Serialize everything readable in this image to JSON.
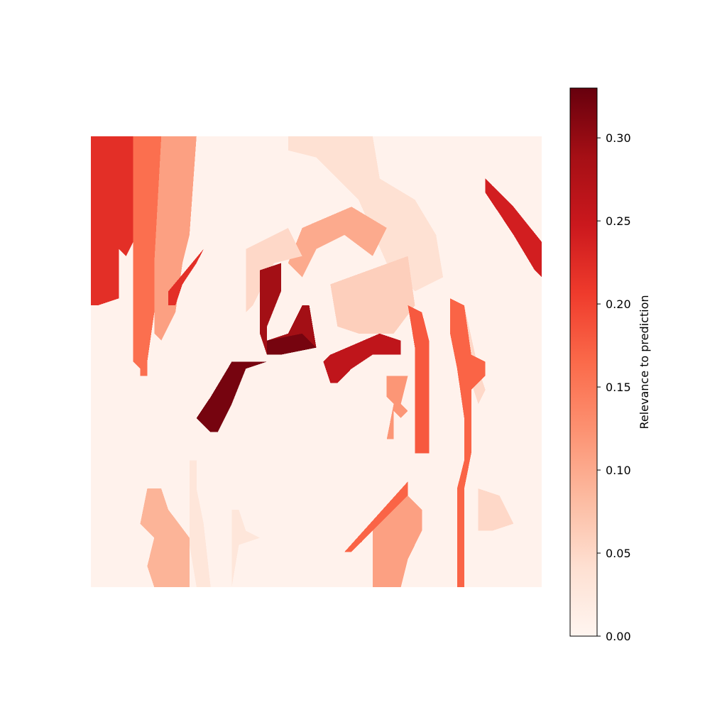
{
  "chart_data": {
    "type": "heatmap",
    "title": "",
    "xlabel": "",
    "ylabel": "",
    "axes_visible": false,
    "colormap": "Reds",
    "colormap_stops": [
      "#fff5f0",
      "#fee0d2",
      "#fcbba1",
      "#fc9272",
      "#fb6a4a",
      "#ef3b2c",
      "#cb181d",
      "#a50f15",
      "#67000d"
    ],
    "value_range": [
      0.0,
      0.33
    ],
    "colorbar": {
      "label": "Relevance to prediction",
      "ticks": [
        0.0,
        0.05,
        0.1,
        0.15,
        0.2,
        0.25,
        0.3
      ],
      "tick_labels": [
        "0.00",
        "0.05",
        "0.10",
        "0.15",
        "0.20",
        "0.25",
        "0.30"
      ]
    },
    "grid_size": [
      64,
      64
    ],
    "background_value": 0.005,
    "regions": [
      {
        "value": 0.22,
        "poly": [
          [
            0,
            0
          ],
          [
            6,
            0
          ],
          [
            6,
            15
          ],
          [
            5,
            17
          ],
          [
            4,
            16
          ],
          [
            4,
            23
          ],
          [
            1,
            24
          ],
          [
            0,
            24
          ]
        ]
      },
      {
        "value": 0.16,
        "poly": [
          [
            6,
            0
          ],
          [
            10,
            0
          ],
          [
            9,
            18
          ],
          [
            9,
            25
          ],
          [
            8,
            32
          ],
          [
            8,
            34
          ],
          [
            7,
            34
          ],
          [
            7,
            33
          ],
          [
            6,
            32
          ],
          [
            6,
            27
          ],
          [
            6,
            16
          ]
        ]
      },
      {
        "value": 0.11,
        "poly": [
          [
            10,
            0
          ],
          [
            15,
            0
          ],
          [
            14,
            14
          ],
          [
            13,
            18
          ],
          [
            12,
            25
          ],
          [
            10,
            29
          ],
          [
            9,
            28
          ],
          [
            9,
            18
          ]
        ]
      },
      {
        "value": 0.22,
        "poly": [
          [
            11,
            22
          ],
          [
            16,
            16
          ],
          [
            15,
            18
          ],
          [
            13,
            21
          ],
          [
            12,
            24
          ],
          [
            11,
            24
          ]
        ]
      },
      {
        "value": 0.04,
        "poly": [
          [
            28,
            0
          ],
          [
            40,
            0
          ],
          [
            41,
            6
          ],
          [
            46,
            9
          ],
          [
            49,
            14
          ],
          [
            50,
            20
          ],
          [
            46,
            22
          ],
          [
            42,
            18
          ],
          [
            38,
            9
          ],
          [
            32,
            3
          ],
          [
            28,
            2
          ]
        ]
      },
      {
        "value": 0.1,
        "poly": [
          [
            30,
            13
          ],
          [
            37,
            10
          ],
          [
            42,
            13
          ],
          [
            40,
            17
          ],
          [
            36,
            14
          ],
          [
            32,
            16
          ],
          [
            30,
            20
          ],
          [
            28,
            18
          ]
        ]
      },
      {
        "value": 0.05,
        "poly": [
          [
            22,
            16
          ],
          [
            28,
            13
          ],
          [
            30,
            17
          ],
          [
            26,
            18
          ],
          [
            23,
            24
          ],
          [
            22,
            25
          ]
        ]
      },
      {
        "value": 0.29,
        "poly": [
          [
            24,
            19
          ],
          [
            27,
            18
          ],
          [
            27,
            22
          ],
          [
            25,
            27
          ],
          [
            25,
            29
          ],
          [
            28,
            28
          ],
          [
            30,
            24
          ],
          [
            31,
            24
          ],
          [
            32,
            30
          ],
          [
            27,
            31
          ],
          [
            25,
            31
          ],
          [
            24,
            28
          ]
        ]
      },
      {
        "value": 0.32,
        "poly": [
          [
            25,
            29
          ],
          [
            30,
            28
          ],
          [
            32,
            30
          ],
          [
            27,
            31
          ],
          [
            25,
            31
          ]
        ]
      },
      {
        "value": 0.32,
        "poly": [
          [
            20,
            32
          ],
          [
            25,
            32
          ],
          [
            22,
            33
          ],
          [
            20,
            38
          ],
          [
            18,
            42
          ],
          [
            17,
            42
          ],
          [
            15,
            40
          ],
          [
            17,
            37
          ]
        ]
      },
      {
        "value": 0.26,
        "poly": [
          [
            34,
            31
          ],
          [
            41,
            28
          ],
          [
            44,
            29
          ],
          [
            44,
            31
          ],
          [
            40,
            31
          ],
          [
            37,
            33
          ],
          [
            35,
            35
          ],
          [
            34,
            35
          ],
          [
            33,
            32
          ]
        ]
      },
      {
        "value": 0.06,
        "poly": [
          [
            34,
            21
          ],
          [
            45,
            17
          ],
          [
            46,
            24
          ],
          [
            43,
            28
          ],
          [
            38,
            28
          ],
          [
            35,
            27
          ]
        ]
      },
      {
        "value": 0.12,
        "poly": [
          [
            42,
            34
          ],
          [
            45,
            34
          ],
          [
            44,
            38
          ],
          [
            45,
            39
          ],
          [
            44,
            40
          ],
          [
            43,
            39
          ],
          [
            43,
            43
          ],
          [
            42,
            43
          ],
          [
            43,
            38
          ],
          [
            42,
            37
          ]
        ]
      },
      {
        "value": 0.18,
        "poly": [
          [
            45,
            24
          ],
          [
            47,
            25
          ],
          [
            48,
            29
          ],
          [
            48,
            45
          ],
          [
            46,
            45
          ],
          [
            46,
            40
          ],
          [
            46,
            34
          ],
          [
            46,
            30
          ]
        ]
      },
      {
        "value": 0.05,
        "poly": [
          [
            51,
            23
          ],
          [
            53,
            24
          ],
          [
            55,
            33
          ],
          [
            56,
            36
          ],
          [
            55,
            38
          ],
          [
            53,
            32
          ],
          [
            51,
            28
          ]
        ]
      },
      {
        "value": 0.17,
        "poly": [
          [
            51,
            23
          ],
          [
            53,
            24
          ],
          [
            54,
            31
          ],
          [
            56,
            32
          ],
          [
            56,
            34
          ],
          [
            54,
            36
          ],
          [
            54,
            45
          ],
          [
            53,
            50
          ],
          [
            53,
            60
          ],
          [
            53,
            64
          ],
          [
            52,
            64
          ],
          [
            52,
            57
          ],
          [
            52,
            50
          ],
          [
            53,
            46
          ],
          [
            53,
            40
          ],
          [
            52,
            33
          ],
          [
            51,
            28
          ]
        ]
      },
      {
        "value": 0.24,
        "poly": [
          [
            56,
            6
          ],
          [
            57,
            7
          ],
          [
            60,
            10
          ],
          [
            64,
            15
          ],
          [
            64,
            20
          ],
          [
            63,
            19
          ],
          [
            60,
            14
          ],
          [
            58,
            11
          ],
          [
            56,
            8
          ]
        ]
      },
      {
        "value": 0.17,
        "poly": [
          [
            36,
            59
          ],
          [
            45,
            49
          ],
          [
            45,
            51
          ],
          [
            40,
            56
          ],
          [
            37,
            59
          ]
        ]
      },
      {
        "value": 0.11,
        "poly": [
          [
            40,
            56
          ],
          [
            45,
            51
          ],
          [
            47,
            53
          ],
          [
            47,
            56
          ],
          [
            45,
            60
          ],
          [
            44,
            64
          ],
          [
            40,
            64
          ],
          [
            40,
            60
          ]
        ]
      },
      {
        "value": 0.05,
        "poly": [
          [
            55,
            50
          ],
          [
            58,
            51
          ],
          [
            60,
            55
          ],
          [
            57,
            56
          ],
          [
            55,
            56
          ]
        ]
      },
      {
        "value": 0.09,
        "poly": [
          [
            8,
            50
          ],
          [
            10,
            50
          ],
          [
            11,
            53
          ],
          [
            14,
            57
          ],
          [
            14,
            64
          ],
          [
            9,
            64
          ],
          [
            8,
            61
          ],
          [
            9,
            57
          ],
          [
            7,
            55
          ]
        ]
      },
      {
        "value": 0.03,
        "poly": [
          [
            14,
            46
          ],
          [
            15,
            46
          ],
          [
            15,
            50
          ],
          [
            16,
            55
          ],
          [
            17,
            64
          ],
          [
            15,
            64
          ],
          [
            14,
            58
          ],
          [
            14,
            54
          ]
        ]
      },
      {
        "value": 0.03,
        "poly": [
          [
            20,
            53
          ],
          [
            21,
            53
          ],
          [
            22,
            56
          ],
          [
            24,
            57
          ],
          [
            21,
            58
          ],
          [
            20,
            64
          ],
          [
            20,
            64
          ]
        ]
      }
    ]
  }
}
